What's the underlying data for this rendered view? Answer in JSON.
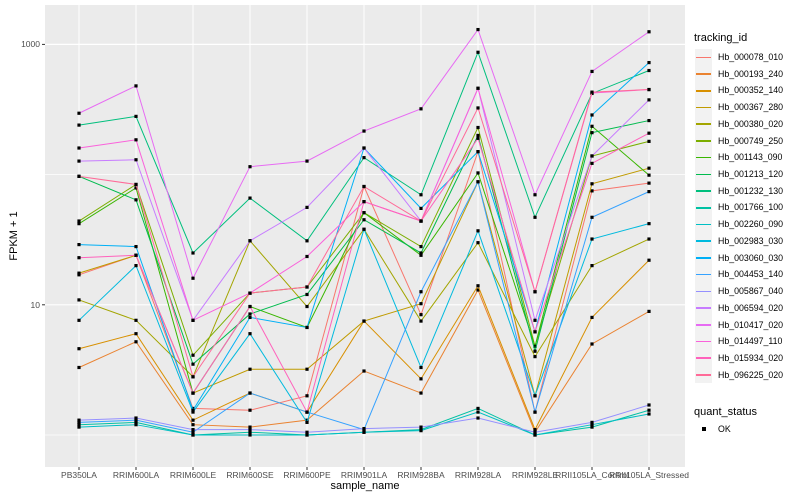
{
  "figure": {
    "background": "#ffffff",
    "panel_background": "#ebebeb",
    "grid_color": "#ffffff",
    "tick_color": "#333333",
    "tick_label_color": "#4d4d4d",
    "point_color": "#000000"
  },
  "axes": {
    "x": {
      "title": "sample_name"
    },
    "y": {
      "title": "FPKM + 1",
      "ticks": [
        {
          "label": "1000",
          "value": 1000
        },
        {
          "label": "10",
          "value": 10
        }
      ],
      "minor_grid_values": [
        100,
        1
      ]
    }
  },
  "legend": {
    "tracking_title": "tracking_id",
    "quant_title": "quant_status",
    "quant_ok_label": "OK"
  },
  "chart_data": {
    "type": "line",
    "yscale": "log10",
    "title": "",
    "xlabel": "sample_name",
    "ylabel": "FPKM + 1",
    "ylim": [
      0.6,
      2000
    ],
    "y_breaks": [
      10,
      1000
    ],
    "grid": true,
    "legend_position": "right",
    "point_shape": "filled-square",
    "point_color": "#000000",
    "x": [
      "PB350LA",
      "RRIM600LA",
      "RRIM600LE",
      "RRIM600SE",
      "RRIM600PE",
      "RRIM901LA",
      "RRIM928BA",
      "RRIM928LA",
      "RRIM928LE",
      "RRII105LA_Control",
      "RRII105LA_Stressed"
    ],
    "series": [
      {
        "name": "Hb_000078_010",
        "color": "#F8766D",
        "values": [
          17,
          24,
          1.6,
          1.55,
          2.0,
          81,
          8.4,
          150,
          1.5,
          75,
          86
        ]
      },
      {
        "name": "Hb_000193_240",
        "color": "#EA8331",
        "values": [
          3.3,
          5.2,
          1.2,
          1.15,
          1.3,
          3.1,
          2.1,
          13,
          1.05,
          5.0,
          8.9
        ]
      },
      {
        "name": "Hb_000352_140",
        "color": "#D89000",
        "values": [
          4.6,
          6.0,
          1.3,
          2.1,
          1.5,
          7.5,
          2.7,
          14,
          1.1,
          8.0,
          22
        ]
      },
      {
        "name": "Hb_000367_280",
        "color": "#C09B00",
        "values": [
          17.5,
          24,
          2.1,
          3.2,
          3.2,
          7.5,
          10.2,
          88,
          2.0,
          85,
          112
        ]
      },
      {
        "name": "Hb_000380_020",
        "color": "#A3A500",
        "values": [
          10.9,
          7.6,
          2.8,
          31,
          9.7,
          38,
          7.5,
          30,
          4.0,
          20,
          32
        ]
      },
      {
        "name": "Hb_000749_250",
        "color": "#7CAE00",
        "values": [
          44,
          84,
          4.1,
          12.3,
          13.7,
          51,
          28,
          230,
          4.8,
          139,
          180
        ]
      },
      {
        "name": "Hb_001143_090",
        "color": "#39B600",
        "values": [
          42,
          79,
          2.1,
          9.7,
          6.7,
          51,
          24,
          103,
          4.8,
          235,
          99
        ]
      },
      {
        "name": "Hb_001213_120",
        "color": "#00BB4E",
        "values": [
          97,
          64,
          3.5,
          8.5,
          12,
          45,
          25,
          200,
          4.4,
          210,
          260
        ]
      },
      {
        "name": "Hb_001232_130",
        "color": "#00BF7D",
        "values": [
          240,
          280,
          25,
          66,
          31,
          135,
          70,
          870,
          47,
          420,
          630
        ]
      },
      {
        "name": "Hb_001766_100",
        "color": "#00C1A3",
        "values": [
          1.2,
          1.25,
          1.0,
          1.05,
          1.0,
          1.05,
          1.1,
          1.6,
          1.0,
          1.15,
          1.55
        ]
      },
      {
        "name": "Hb_002260_090",
        "color": "#00BFC4",
        "values": [
          1.15,
          1.2,
          1.0,
          1.0,
          1.0,
          1.05,
          1.08,
          1.5,
          1.0,
          1.2,
          1.45
        ]
      },
      {
        "name": "Hb_002983_030",
        "color": "#00BADE",
        "values": [
          7.6,
          20,
          1.5,
          6.0,
          1.25,
          38,
          3.3,
          37,
          2.0,
          32,
          42
        ]
      },
      {
        "name": "Hb_003060_030",
        "color": "#00B0F6",
        "values": [
          29,
          28,
          1.55,
          8.0,
          6.7,
          160,
          55,
          150,
          6.2,
          287,
          725
        ]
      },
      {
        "name": "Hb_004453_140",
        "color": "#35A2FF",
        "values": [
          1.25,
          1.3,
          1.05,
          2.1,
          1.5,
          1.1,
          12.6,
          88,
          1.5,
          47,
          74
        ]
      },
      {
        "name": "Hb_005867_040",
        "color": "#9590FF",
        "values": [
          1.3,
          1.35,
          1.1,
          1.1,
          1.05,
          1.12,
          1.15,
          1.35,
          1.05,
          1.25,
          1.7
        ]
      },
      {
        "name": "Hb_006594_020",
        "color": "#C77CFF",
        "values": [
          127,
          130,
          7.6,
          31,
          56,
          160,
          44,
          460,
          7.6,
          139,
          375
        ]
      },
      {
        "name": "Hb_010417_020",
        "color": "#E76BF3",
        "values": [
          296,
          480,
          16,
          115,
          127,
          216,
          320,
          1300,
          70,
          620,
          1250
        ]
      },
      {
        "name": "Hb_014497_110",
        "color": "#FA62DB",
        "values": [
          160,
          185,
          7.6,
          12.3,
          23.5,
          62,
          44,
          460,
          12.6,
          423,
          450
        ]
      },
      {
        "name": "Hb_015934_020",
        "color": "#FF62BC",
        "values": [
          23,
          24,
          2.1,
          9.7,
          1.5,
          62,
          44,
          190,
          6.2,
          122,
          208
        ]
      },
      {
        "name": "Hb_096225_020",
        "color": "#FF6A98",
        "values": [
          97,
          84,
          2.8,
          12.3,
          13.7,
          81,
          44,
          325,
          12.6,
          430,
          450
        ]
      }
    ]
  }
}
